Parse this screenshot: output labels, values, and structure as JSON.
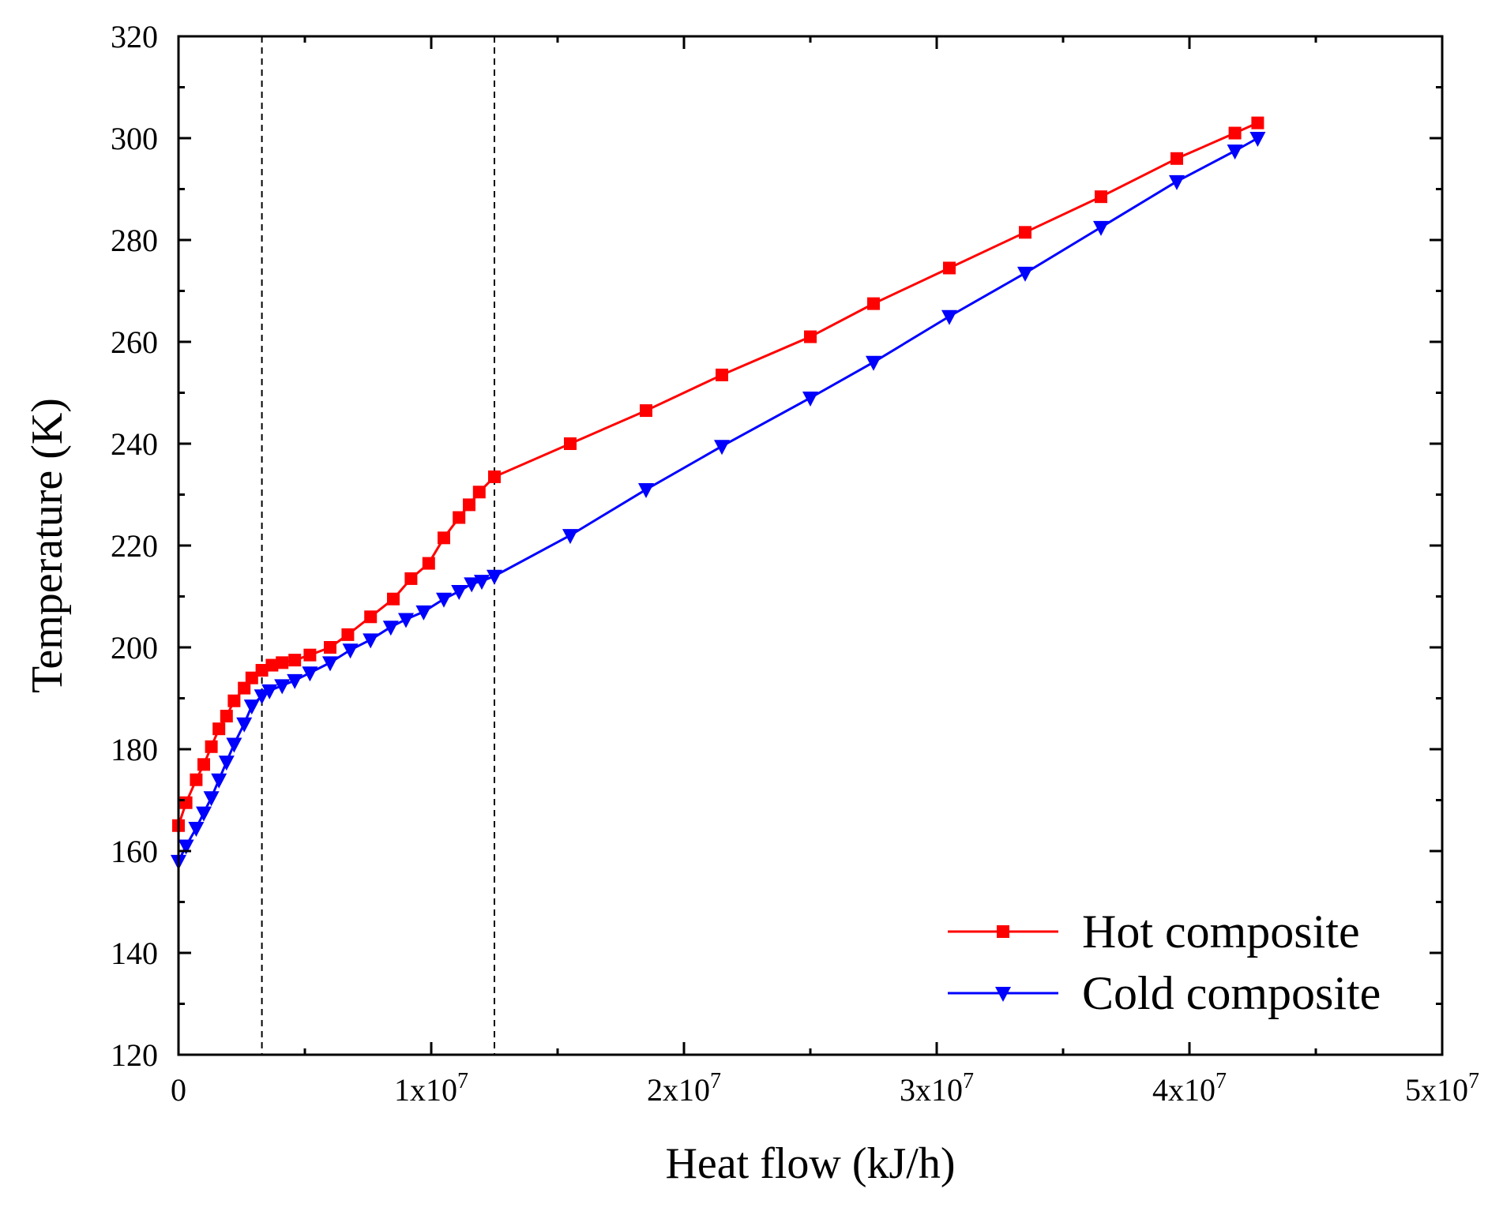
{
  "chart_data": {
    "type": "line",
    "title": "",
    "xlabel": "Heat flow (kJ/h)",
    "ylabel": "Temperature (K)",
    "xlim": [
      0,
      50000000
    ],
    "ylim": [
      120,
      320
    ],
    "x_ticks": [
      {
        "value": 0,
        "base": "0",
        "exp": ""
      },
      {
        "value": 10000000,
        "base": "1x10",
        "exp": "7"
      },
      {
        "value": 20000000,
        "base": "2x10",
        "exp": "7"
      },
      {
        "value": 30000000,
        "base": "3x10",
        "exp": "7"
      },
      {
        "value": 40000000,
        "base": "4x10",
        "exp": "7"
      },
      {
        "value": 50000000,
        "base": "5x10",
        "exp": "7"
      }
    ],
    "y_ticks": [
      120,
      140,
      160,
      180,
      200,
      220,
      240,
      260,
      280,
      300,
      320
    ],
    "grid": false,
    "legend_position": "bottom-right",
    "reference_lines_x": [
      3300000,
      12500000
    ],
    "series": [
      {
        "name": "Hot composite",
        "color": "#ff0000",
        "marker": "square",
        "x": [
          0,
          300000,
          700000,
          1000000,
          1300000,
          1600000,
          1900000,
          2200000,
          2600000,
          2900000,
          3300000,
          3700000,
          4100000,
          4600000,
          5200000,
          6000000,
          6700000,
          7600000,
          8500000,
          9200000,
          9900000,
          10500000,
          11100000,
          11500000,
          11900000,
          12500000,
          15500000,
          18500000,
          21500000,
          25000000,
          27500000,
          30500000,
          33500000,
          36500000,
          39500000,
          41800000,
          42700000
        ],
        "y": [
          165,
          169.5,
          174,
          177,
          180.5,
          184,
          186.5,
          189.5,
          192,
          194,
          195.5,
          196.5,
          197,
          197.5,
          198.5,
          200,
          202.5,
          206,
          209.5,
          213.5,
          216.5,
          221.5,
          225.5,
          228,
          230.5,
          233.5,
          240,
          246.5,
          253.5,
          261,
          267.5,
          274.5,
          281.5,
          288.5,
          296,
          301,
          303
        ]
      },
      {
        "name": "Cold composite",
        "color": "#0000ff",
        "marker": "triangle-down",
        "x": [
          0,
          300000,
          700000,
          1000000,
          1300000,
          1600000,
          1900000,
          2200000,
          2600000,
          2900000,
          3300000,
          3600000,
          4100000,
          4600000,
          5200000,
          6000000,
          6800000,
          7600000,
          8400000,
          9000000,
          9700000,
          10500000,
          11100000,
          11600000,
          12000000,
          12500000,
          15500000,
          18500000,
          21500000,
          25000000,
          27500000,
          30500000,
          33500000,
          36500000,
          39500000,
          41800000,
          42700000
        ],
        "y": [
          158,
          161,
          164.5,
          167.5,
          170.5,
          174,
          177.5,
          181,
          185,
          188.5,
          190.5,
          191.5,
          192.5,
          193.5,
          195,
          197,
          199.5,
          201.5,
          204,
          205.5,
          207,
          209.5,
          211,
          212.5,
          213,
          214,
          222,
          231,
          239.5,
          249,
          256,
          265,
          273.5,
          282.5,
          291.5,
          297.5,
          300
        ]
      }
    ]
  }
}
